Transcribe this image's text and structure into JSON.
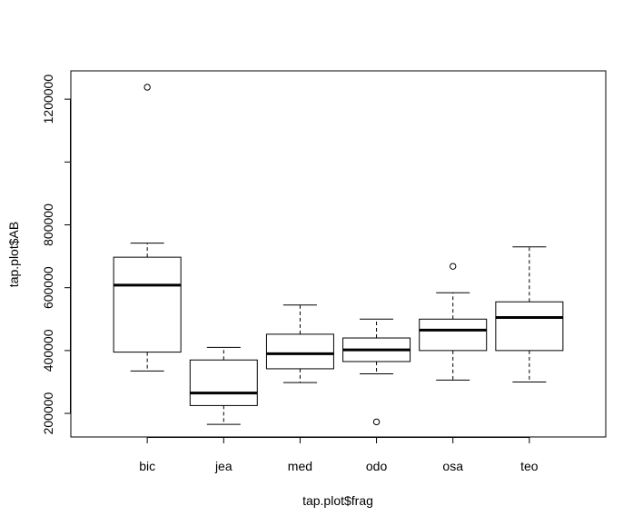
{
  "chart_data": {
    "type": "boxplot",
    "title": "",
    "xlabel": "tap.plot$frag",
    "ylabel": "tap.plot$AB",
    "ylim": [
      125000,
      1290000
    ],
    "y_ticks": [
      200000,
      400000,
      600000,
      800000,
      1000000,
      1200000
    ],
    "y_tick_labels": [
      "200000",
      "400000",
      "600000",
      "800000",
      "",
      "1200000"
    ],
    "grid": false,
    "categories": [
      "bic",
      "jea",
      "med",
      "odo",
      "osa",
      "teo"
    ],
    "boxes": [
      {
        "name": "bic",
        "whisker_low": 335000,
        "q1": 395000,
        "median": 608000,
        "q3": 697000,
        "whisker_high": 742000,
        "outliers": [
          1238000
        ]
      },
      {
        "name": "jea",
        "whisker_low": 165000,
        "q1": 225000,
        "median": 265000,
        "q3": 370000,
        "whisker_high": 410000,
        "outliers": []
      },
      {
        "name": "med",
        "whisker_low": 298000,
        "q1": 342000,
        "median": 390000,
        "q3": 452000,
        "whisker_high": 545000,
        "outliers": []
      },
      {
        "name": "odo",
        "whisker_low": 326000,
        "q1": 365000,
        "median": 402000,
        "q3": 440000,
        "whisker_high": 500000,
        "outliers": [
          173000
        ]
      },
      {
        "name": "osa",
        "whisker_low": 306000,
        "q1": 400000,
        "median": 465000,
        "q3": 500000,
        "whisker_high": 584000,
        "outliers": [
          668000
        ]
      },
      {
        "name": "teo",
        "whisker_low": 300000,
        "q1": 400000,
        "median": 505000,
        "q3": 555000,
        "whisker_high": 730000,
        "outliers": []
      }
    ]
  }
}
